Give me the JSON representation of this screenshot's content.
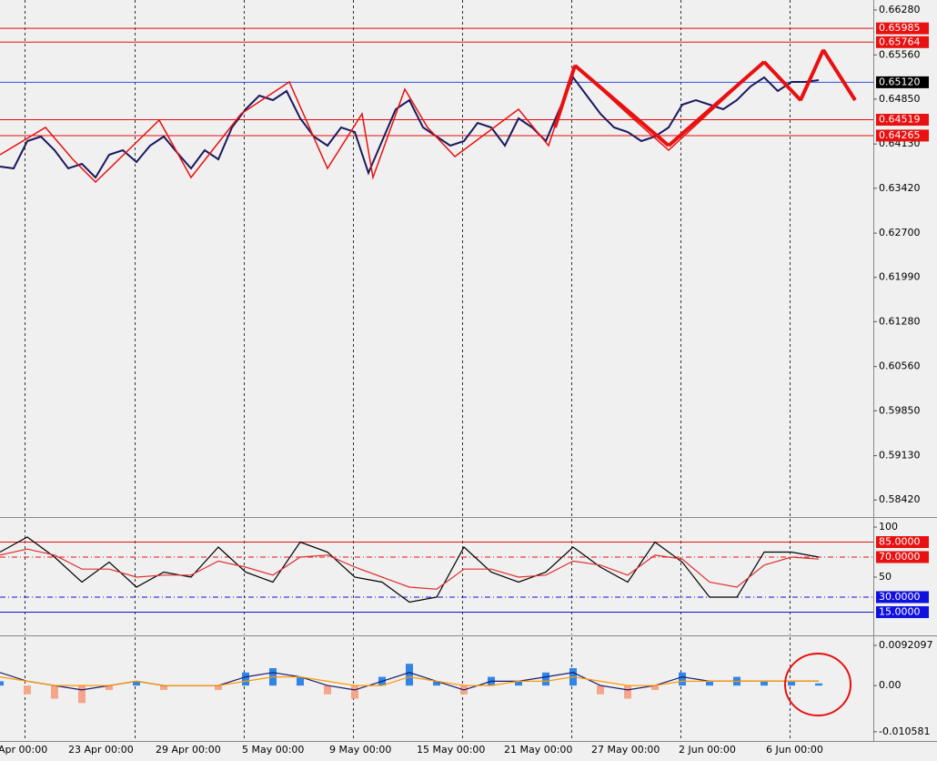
{
  "time_axis": [
    "Apr 00:00",
    "23 Apr 00:00",
    "29 Apr 00:00",
    "5 May 00:00",
    "9 May 00:00",
    "15 May 00:00",
    "21 May 00:00",
    "27 May 00:00",
    "2 Jun 00:00",
    "6 Jun 00:00"
  ],
  "chart_data": [
    {
      "type": "line",
      "ylim": [
        0.5816,
        0.6644
      ],
      "yticks": [
        {
          "value": 0.6628,
          "label": "0.66280"
        },
        {
          "value": 0.6556,
          "label": "0.65560"
        },
        {
          "value": 0.6485,
          "label": "0.64850"
        },
        {
          "value": 0.6413,
          "label": "0.64130"
        },
        {
          "value": 0.6342,
          "label": "0.63420"
        },
        {
          "value": 0.627,
          "label": "0.62700"
        },
        {
          "value": 0.6199,
          "label": "0.61990"
        },
        {
          "value": 0.6128,
          "label": "0.61280"
        },
        {
          "value": 0.6056,
          "label": "0.60560"
        },
        {
          "value": 0.5985,
          "label": "0.59850"
        },
        {
          "value": 0.5913,
          "label": "0.59130"
        },
        {
          "value": 0.5842,
          "label": "0.58420"
        }
      ],
      "levels": [
        {
          "value": 0.65985,
          "color": "#e81010"
        },
        {
          "value": 0.65764,
          "color": "#e81010"
        },
        {
          "value": 0.6512,
          "label": "0.65120",
          "color": "#3050e0",
          "label_color": "#000000"
        },
        {
          "value": 0.64519,
          "color": "#e81010"
        },
        {
          "value": 0.64265,
          "color": "#e81010"
        }
      ],
      "series": [
        {
          "color": "#1a1a5e",
          "values": [
            0.63767,
            0.63738,
            0.64176,
            0.64249,
            0.6403,
            0.63738,
            0.63811,
            0.63592,
            0.63957,
            0.6403,
            0.6384,
            0.64103,
            0.64249,
            0.63986,
            0.63738,
            0.6403,
            0.63884,
            0.64395,
            0.64688,
            0.64907,
            0.64834,
            0.6498,
            0.64541,
            0.64249,
            0.64103,
            0.64395,
            0.64322,
            0.63665,
            0.64176,
            0.64688,
            0.64834,
            0.64395,
            0.64249,
            0.64103,
            0.64176,
            0.64468,
            0.64395,
            0.64103,
            0.64541,
            0.64395,
            0.64176,
            0.64688,
            0.65199,
            0.64907,
            0.64614,
            0.64395,
            0.64322,
            0.64176,
            0.64249,
            0.64395,
            0.64761,
            0.64834,
            0.64761,
            0.64688,
            0.64834,
            0.65053,
            0.65199,
            0.6498,
            0.65126,
            0.65126,
            0.65155
          ]
        }
      ]
    },
    {
      "type": "line",
      "ylim": [
        -7.3,
        108.2
      ],
      "yticks": [
        100,
        50
      ],
      "levels": [
        {
          "value": 85,
          "label": "85.0000",
          "color": "#e81010"
        },
        {
          "value": 70,
          "label": "70.0000",
          "color": "#e81010",
          "dash": true
        },
        {
          "value": 30,
          "label": "30.0000",
          "color": "#1010e0",
          "dash": true
        },
        {
          "value": 15,
          "label": "15.0000",
          "color": "#1010e0"
        }
      ],
      "series": [
        {
          "color": "#000000",
          "values": [
            75,
            90,
            70,
            45,
            65,
            40,
            55,
            50,
            80,
            55,
            45,
            85,
            75,
            50,
            45,
            25,
            30,
            80,
            55,
            45,
            55,
            80,
            60,
            45,
            85,
            65,
            30,
            30,
            75,
            75,
            70
          ]
        },
        {
          "color": "#e03030",
          "values": [
            72,
            78,
            72,
            58,
            58,
            50,
            52,
            52,
            66,
            60,
            52,
            70,
            72,
            60,
            50,
            40,
            38,
            58,
            58,
            50,
            52,
            66,
            62,
            52,
            72,
            68,
            45,
            40,
            62,
            70,
            68
          ]
        }
      ]
    },
    {
      "type": "bar",
      "ylim": [
        -0.0125,
        0.0111
      ],
      "yticks": [
        0.0092097,
        {
          "value": 0,
          "label": "0.00"
        },
        -0.010581
      ],
      "positive_color": "#2f86e8",
      "negative_color": "#f4a58a",
      "values": [
        0.001,
        -0.002,
        -0.003,
        -0.004,
        -0.001,
        0.001,
        -0.001,
        0,
        -0.001,
        0.003,
        0.004,
        0.002,
        -0.002,
        -0.003,
        0.002,
        0.005,
        0.001,
        -0.002,
        0.002,
        0.001,
        0.003,
        0.004,
        -0.002,
        -0.003,
        -0.001,
        0.003,
        0.001,
        0.002,
        0.001,
        0.001,
        0.0005
      ],
      "series": [
        {
          "color": "#1a1a6e",
          "values": [
            0.003,
            0.001,
            0,
            -0.001,
            0,
            0.001,
            0,
            0,
            0,
            0.002,
            0.003,
            0.002,
            0,
            -0.001,
            0.001,
            0.003,
            0.001,
            -0.001,
            0.001,
            0.001,
            0.002,
            0.003,
            0,
            -0.001,
            0,
            0.002,
            0.001,
            0.001,
            0.001,
            0.001,
            0.001
          ]
        },
        {
          "color": "#ff9900",
          "values": [
            0.002,
            0.001,
            0,
            0,
            0,
            0.001,
            0,
            0,
            0,
            0.001,
            0.002,
            0.002,
            0.001,
            0,
            0,
            0.002,
            0.001,
            0,
            0,
            0.001,
            0.001,
            0.002,
            0.001,
            0,
            0,
            0.001,
            0.001,
            0.001,
            0.001,
            0.001,
            0.001
          ]
        }
      ]
    }
  ]
}
